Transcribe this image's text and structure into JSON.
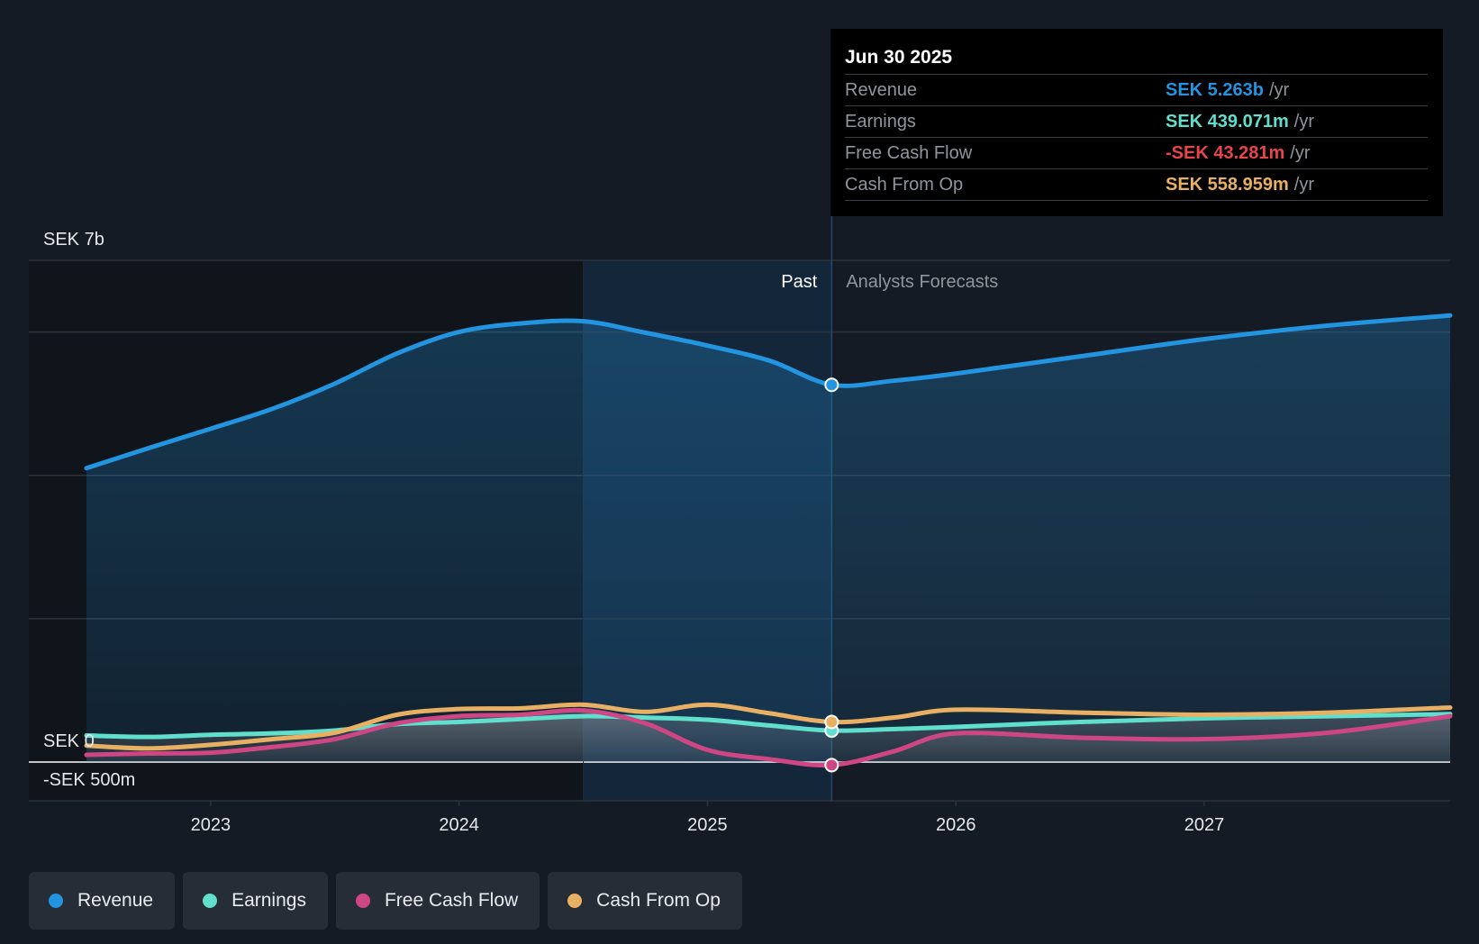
{
  "colors": {
    "revenue": "#2394df",
    "earnings": "#60dfcd",
    "free_cash_flow": "#cf4684",
    "cash_from_op": "#e8b063",
    "negative": "#e8444b"
  },
  "tooltip": {
    "date": "Jun 30 2025",
    "rows": [
      {
        "label": "Revenue",
        "value": "SEK 5.263b",
        "unit": "/yr"
      },
      {
        "label": "Earnings",
        "value": "SEK 439.071m",
        "unit": "/yr"
      },
      {
        "label": "Free Cash Flow",
        "value": "-SEK 43.281m",
        "unit": "/yr"
      },
      {
        "label": "Cash From Op",
        "value": "SEK 558.959m",
        "unit": "/yr"
      }
    ]
  },
  "legend": {
    "items": [
      "Revenue",
      "Earnings",
      "Free Cash Flow",
      "Cash From Op"
    ]
  },
  "chart_data": {
    "type": "line",
    "title": "",
    "xlabel": "",
    "ylabel": "",
    "y_top_label": "SEK 7b",
    "y_zero_label": "SEK 0",
    "y_bottom_label": "-SEK 500m",
    "ylim": [
      -500,
      7000
    ],
    "xlim": [
      2022.5,
      2027.99
    ],
    "x_ticks": [
      "2023",
      "2024",
      "2025",
      "2026",
      "2027"
    ],
    "x_tick_values": [
      2023,
      2024,
      2025,
      2026,
      2027
    ],
    "past_label": "Past",
    "forecast_label": "Analysts Forecasts",
    "divider_x": 2025.5,
    "highlight_start_x": 2024.5,
    "series": [
      {
        "name": "Revenue",
        "key": "revenue",
        "fill": true,
        "points": [
          [
            2022.5,
            4100
          ],
          [
            2022.75,
            4380
          ],
          [
            2023,
            4650
          ],
          [
            2023.25,
            4930
          ],
          [
            2023.5,
            5280
          ],
          [
            2023.75,
            5700
          ],
          [
            2024,
            6000
          ],
          [
            2024.25,
            6120
          ],
          [
            2024.5,
            6150
          ],
          [
            2024.75,
            5990
          ],
          [
            2025,
            5810
          ],
          [
            2025.25,
            5600
          ],
          [
            2025.5,
            5263
          ],
          [
            2025.75,
            5320
          ],
          [
            2026,
            5420
          ],
          [
            2026.5,
            5660
          ],
          [
            2027,
            5900
          ],
          [
            2027.5,
            6090
          ],
          [
            2027.99,
            6230
          ]
        ]
      },
      {
        "name": "Earnings",
        "key": "earnings",
        "fill": true,
        "points": [
          [
            2022.5,
            370
          ],
          [
            2022.75,
            350
          ],
          [
            2023,
            380
          ],
          [
            2023.25,
            400
          ],
          [
            2023.5,
            440
          ],
          [
            2023.75,
            530
          ],
          [
            2024,
            560
          ],
          [
            2024.25,
            600
          ],
          [
            2024.5,
            640
          ],
          [
            2024.75,
            620
          ],
          [
            2025,
            590
          ],
          [
            2025.25,
            510
          ],
          [
            2025.5,
            439
          ],
          [
            2025.75,
            460
          ],
          [
            2026,
            490
          ],
          [
            2026.5,
            560
          ],
          [
            2027,
            610
          ],
          [
            2027.5,
            640
          ],
          [
            2027.99,
            670
          ]
        ]
      },
      {
        "name": "Free Cash Flow",
        "key": "free_cash_flow",
        "fill": true,
        "points": [
          [
            2022.5,
            100
          ],
          [
            2022.75,
            120
          ],
          [
            2023,
            130
          ],
          [
            2023.25,
            210
          ],
          [
            2023.5,
            320
          ],
          [
            2023.75,
            540
          ],
          [
            2024,
            640
          ],
          [
            2024.25,
            660
          ],
          [
            2024.5,
            720
          ],
          [
            2024.75,
            540
          ],
          [
            2025,
            170
          ],
          [
            2025.25,
            40
          ],
          [
            2025.5,
            -43
          ],
          [
            2025.75,
            150
          ],
          [
            2026,
            400
          ],
          [
            2026.5,
            340
          ],
          [
            2027,
            320
          ],
          [
            2027.5,
            410
          ],
          [
            2027.99,
            640
          ]
        ]
      },
      {
        "name": "Cash From Op",
        "key": "cash_from_op",
        "fill": false,
        "points": [
          [
            2022.5,
            230
          ],
          [
            2022.75,
            190
          ],
          [
            2023,
            240
          ],
          [
            2023.25,
            320
          ],
          [
            2023.5,
            410
          ],
          [
            2023.75,
            660
          ],
          [
            2024,
            740
          ],
          [
            2024.25,
            750
          ],
          [
            2024.5,
            800
          ],
          [
            2024.75,
            700
          ],
          [
            2025,
            800
          ],
          [
            2025.25,
            680
          ],
          [
            2025.5,
            559
          ],
          [
            2025.75,
            620
          ],
          [
            2026,
            730
          ],
          [
            2026.5,
            690
          ],
          [
            2027,
            660
          ],
          [
            2027.5,
            690
          ],
          [
            2027.99,
            760
          ]
        ]
      }
    ]
  }
}
